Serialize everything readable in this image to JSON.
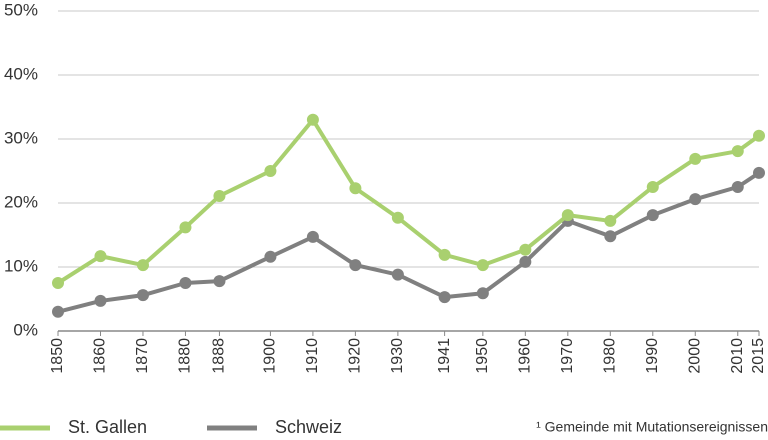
{
  "chart_data": {
    "type": "line",
    "x": [
      1850,
      1860,
      1870,
      1880,
      1888,
      1900,
      1910,
      1920,
      1930,
      1941,
      1950,
      1960,
      1970,
      1980,
      1990,
      2000,
      2010,
      2015
    ],
    "series": [
      {
        "name": "St. Gallen",
        "color": "#a9d06f",
        "values": [
          7.5,
          11.7,
          10.3,
          16.2,
          21.1,
          25,
          33,
          22.3,
          17.7,
          11.9,
          10.3,
          12.7,
          18.1,
          17.2,
          22.5,
          26.9,
          28.1,
          30.5
        ]
      },
      {
        "name": "Schweiz",
        "color": "#808080",
        "values": [
          3.0,
          4.7,
          5.6,
          7.5,
          7.8,
          11.6,
          14.7,
          10.3,
          8.8,
          5.3,
          5.9,
          10.8,
          17.2,
          14.8,
          18.1,
          20.6,
          22.5,
          24.7
        ]
      }
    ],
    "xlim": [
      1850,
      2015
    ],
    "xticks": [
      1850,
      1860,
      1870,
      1880,
      1888,
      1900,
      1910,
      1920,
      1930,
      1941,
      1950,
      1960,
      1970,
      1980,
      1990,
      2000,
      2010,
      2015
    ],
    "ylim": [
      0,
      50
    ],
    "yticks": [
      {
        "value": 0,
        "label": "0%"
      },
      {
        "value": 10,
        "label": "10%"
      },
      {
        "value": 20,
        "label": "20%"
      },
      {
        "value": 30,
        "label": "30%"
      },
      {
        "value": 40,
        "label": "40%"
      },
      {
        "value": 50,
        "label": "50%"
      }
    ],
    "grid": true,
    "legend": "bottom",
    "footnote": "¹ Gemeinde mit Mutationsereignissen"
  }
}
